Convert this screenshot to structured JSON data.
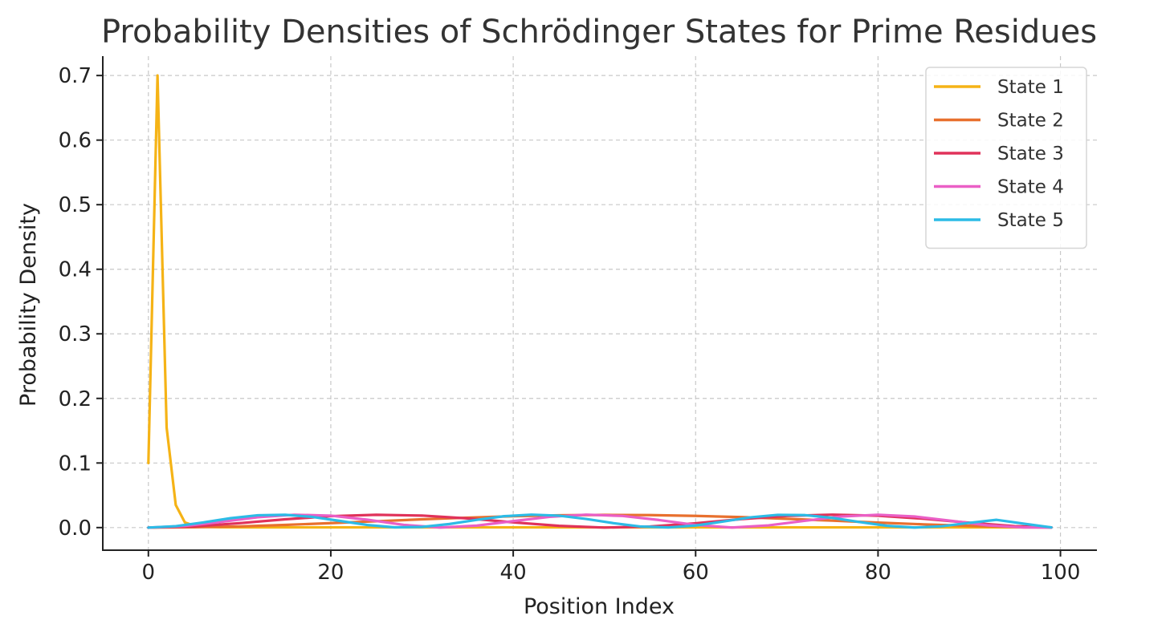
{
  "chart_data": {
    "type": "line",
    "title": "Probability Densities of Schrödinger States for Prime Residues",
    "xlabel": "Position Index",
    "ylabel": "Probability Density",
    "xlim": [
      -5,
      104
    ],
    "ylim": [
      -0.035,
      0.73
    ],
    "xticks": [
      0,
      20,
      40,
      60,
      80,
      100
    ],
    "yticks": [
      0.0,
      0.1,
      0.2,
      0.3,
      0.4,
      0.5,
      0.6,
      0.7
    ],
    "grid": true,
    "legend_position": "top-right",
    "series": [
      {
        "name": "State 1",
        "color": "#f5b316",
        "x": [
          0,
          1,
          2,
          3,
          4,
          5,
          6,
          8,
          10,
          15,
          20,
          30,
          40,
          50,
          60,
          70,
          80,
          90,
          99
        ],
        "y": [
          0.1,
          0.7,
          0.155,
          0.035,
          0.008,
          0.003,
          0.001,
          0.0005,
          0.0003,
          0.0003,
          0.0003,
          0.0003,
          0.0003,
          0.0003,
          0.0003,
          0.0003,
          0.0003,
          0.0003,
          0.0003
        ]
      },
      {
        "name": "State 2",
        "color": "#e8702e",
        "x": [
          0,
          5,
          10,
          15,
          20,
          25,
          30,
          35,
          40,
          45,
          50,
          55,
          60,
          65,
          70,
          75,
          80,
          85,
          90,
          95,
          99
        ],
        "y": [
          0.0,
          0.0005,
          0.0019,
          0.0041,
          0.0069,
          0.0098,
          0.0128,
          0.0154,
          0.0176,
          0.019,
          0.0196,
          0.0193,
          0.0181,
          0.0162,
          0.0136,
          0.0107,
          0.0077,
          0.005,
          0.0027,
          0.001,
          0.0002
        ]
      },
      {
        "name": "State 3",
        "color": "#e0325a",
        "x": [
          0,
          5,
          10,
          15,
          20,
          25,
          30,
          35,
          40,
          45,
          50,
          55,
          60,
          65,
          70,
          75,
          80,
          85,
          90,
          95,
          99
        ],
        "y": [
          0.0,
          0.0018,
          0.0068,
          0.0128,
          0.0177,
          0.0198,
          0.0186,
          0.0142,
          0.0081,
          0.0027,
          0.0,
          0.0016,
          0.0067,
          0.0131,
          0.0181,
          0.02,
          0.0184,
          0.0137,
          0.0075,
          0.0022,
          0.0002
        ]
      },
      {
        "name": "State 4",
        "color": "#ea5fc6",
        "x": [
          0,
          4,
          8,
          12,
          16,
          20,
          24,
          28,
          32,
          36,
          40,
          44,
          48,
          52,
          56,
          60,
          64,
          68,
          72,
          76,
          80,
          84,
          88,
          92,
          96,
          99
        ],
        "y": [
          0.0,
          0.0025,
          0.0089,
          0.016,
          0.0199,
          0.0185,
          0.0122,
          0.0042,
          0.0001,
          0.003,
          0.01,
          0.0166,
          0.02,
          0.018,
          0.0117,
          0.004,
          0.0001,
          0.0034,
          0.0106,
          0.0172,
          0.0199,
          0.0172,
          0.0105,
          0.0035,
          0.0002,
          0.0001
        ]
      },
      {
        "name": "State 5",
        "color": "#2cbbe6",
        "x": [
          0,
          3,
          6,
          9,
          12,
          15,
          18,
          21,
          24,
          27,
          30,
          33,
          36,
          39,
          42,
          45,
          48,
          51,
          54,
          57,
          60,
          63,
          66,
          69,
          72,
          75,
          78,
          81,
          84,
          87,
          90,
          93,
          96,
          99
        ],
        "y": [
          0.0,
          0.0022,
          0.0079,
          0.0145,
          0.0191,
          0.0198,
          0.0165,
          0.0103,
          0.004,
          0.0004,
          0.001,
          0.0055,
          0.0119,
          0.0176,
          0.02,
          0.0185,
          0.0134,
          0.0068,
          0.0016,
          0.0002,
          0.0032,
          0.0093,
          0.0158,
          0.0197,
          0.0193,
          0.015,
          0.0085,
          0.0027,
          0.0001,
          0.002,
          0.0073,
          0.012,
          0.006,
          0.0003
        ]
      }
    ]
  }
}
